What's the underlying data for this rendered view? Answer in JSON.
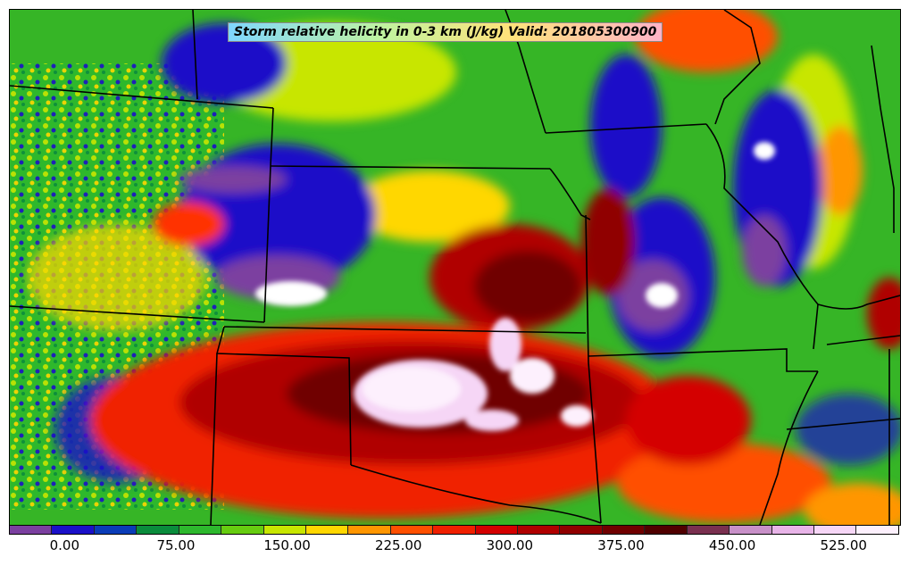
{
  "title": "Storm relative helicity in 0-3 km (J/kg) Valid: 201805300900",
  "colorbar": {
    "colors": [
      "#7b3fa0",
      "#1a10c8",
      "#0a3cb8",
      "#0a8c3c",
      "#2db82d",
      "#66cc10",
      "#c8e600",
      "#ffd700",
      "#ff9600",
      "#ff5000",
      "#f02000",
      "#d40000",
      "#b00000",
      "#900000",
      "#700000",
      "#500000",
      "#7a3050",
      "#c890c8",
      "#e8b4e8",
      "#f6d6f6",
      "#fdf0fd"
    ],
    "tick_labels": [
      "0.00",
      "75.00",
      "150.00",
      "225.00",
      "300.00",
      "375.00",
      "450.00",
      "525.00"
    ],
    "tick_values": [
      0,
      75,
      150,
      225,
      300,
      375,
      450,
      525
    ],
    "range": [
      -37.5,
      562.5
    ]
  }
}
